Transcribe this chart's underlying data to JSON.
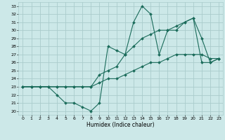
{
  "xlabel": "Humidex (Indice chaleur)",
  "bg_color": "#cce8e8",
  "grid_color": "#aacccc",
  "line_color": "#1a6b5a",
  "x_ticks": [
    0,
    1,
    2,
    3,
    4,
    5,
    6,
    7,
    8,
    9,
    10,
    11,
    12,
    13,
    14,
    15,
    16,
    17,
    18,
    19,
    20,
    21,
    22,
    23
  ],
  "y_ticks": [
    20,
    21,
    22,
    23,
    24,
    25,
    26,
    27,
    28,
    29,
    30,
    31,
    32,
    33
  ],
  "ylim": [
    19.5,
    33.5
  ],
  "xlim": [
    -0.5,
    23.5
  ],
  "series1": [
    23,
    23,
    23,
    23,
    22,
    21,
    21,
    20.5,
    20,
    21,
    28,
    27.5,
    27,
    31,
    33,
    32,
    27,
    30,
    30,
    31,
    31.5,
    29,
    26,
    26.5
  ],
  "series2": [
    23,
    23,
    23,
    23,
    23,
    23,
    23,
    23,
    23,
    24.5,
    25,
    25.5,
    27,
    28,
    29,
    29.5,
    30,
    30,
    30.5,
    31,
    31.5,
    26,
    26,
    26.5
  ],
  "series3": [
    23,
    23,
    23,
    23,
    23,
    23,
    23,
    23,
    23,
    23.5,
    24,
    24,
    24.5,
    25,
    25.5,
    26,
    26,
    26.5,
    27,
    27,
    27,
    27,
    26.5,
    26.5
  ]
}
